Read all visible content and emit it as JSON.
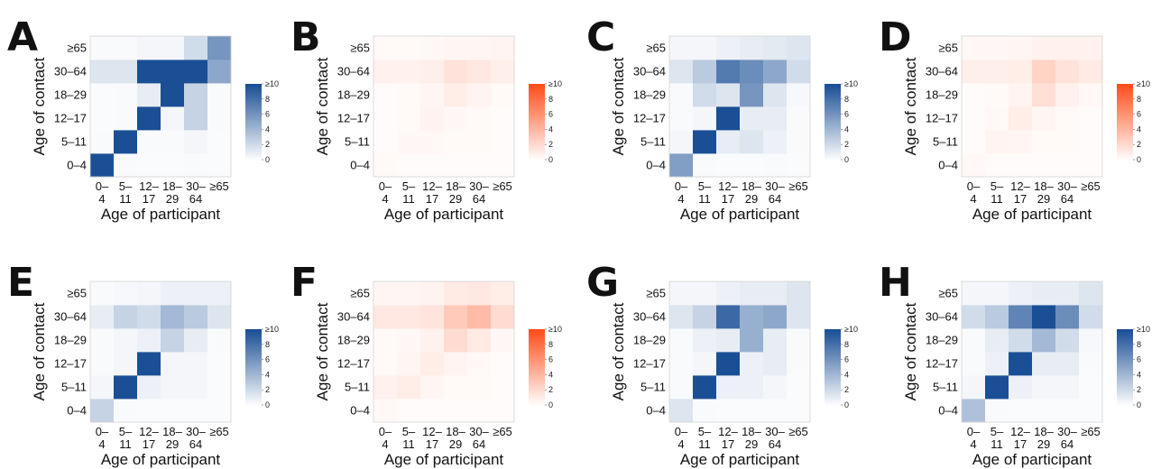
{
  "chart_data": [
    {
      "type": "heatmap",
      "panel": "A",
      "palette": "blue",
      "xlabel": "Age of participant",
      "ylabel": "Age of contact",
      "x_categories": [
        "0–4",
        "5–11",
        "12–17",
        "18–29",
        "30–64",
        "≥65"
      ],
      "y_categories": [
        "0–4",
        "5–11",
        "12–17",
        "18–29",
        "30–64",
        "≥65"
      ],
      "z_range": [
        0,
        10
      ],
      "legend_ticks": [
        "≥10",
        "8",
        "6",
        "4",
        "2",
        "0"
      ],
      "values": [
        [
          10,
          0.3,
          0.2,
          0.2,
          0.3,
          0.2
        ],
        [
          0.3,
          10,
          0.3,
          0.3,
          0.5,
          0.2
        ],
        [
          0.2,
          0.3,
          10,
          0.5,
          2.5,
          0.3
        ],
        [
          0.2,
          0.3,
          1.0,
          10,
          2.5,
          0.3
        ],
        [
          1.5,
          1.5,
          10,
          10,
          10,
          5.0
        ],
        [
          0.3,
          0.3,
          0.5,
          0.5,
          2.0,
          6.0
        ]
      ]
    },
    {
      "type": "heatmap",
      "panel": "B",
      "palette": "orange",
      "xlabel": "Age of participant",
      "ylabel": "Age of contact",
      "x_categories": [
        "0–4",
        "5–11",
        "12–17",
        "18–29",
        "30–64",
        "≥65"
      ],
      "y_categories": [
        "0–4",
        "5–11",
        "12–17",
        "18–29",
        "30–64",
        "≥65"
      ],
      "z_range": [
        0,
        10
      ],
      "legend_ticks": [
        "≥10",
        "8",
        "6",
        "4",
        "2",
        "0"
      ],
      "values": [
        [
          0.3,
          0.2,
          0.2,
          0.2,
          0.2,
          0.2
        ],
        [
          0.2,
          0.4,
          0.4,
          0.3,
          0.3,
          0.2
        ],
        [
          0.2,
          0.3,
          0.6,
          0.4,
          0.3,
          0.2
        ],
        [
          0.2,
          0.3,
          0.5,
          1.0,
          0.6,
          0.3
        ],
        [
          0.8,
          0.8,
          0.9,
          1.6,
          1.3,
          0.9
        ],
        [
          0.3,
          0.3,
          0.4,
          0.5,
          0.5,
          0.6
        ]
      ]
    },
    {
      "type": "heatmap",
      "panel": "C",
      "palette": "blue",
      "xlabel": "Age of participant",
      "ylabel": "Age of contact",
      "x_categories": [
        "0–4",
        "5–11",
        "12–17",
        "18–29",
        "30–64",
        "≥65"
      ],
      "y_categories": [
        "0–4",
        "5–11",
        "12–17",
        "18–29",
        "30–64",
        "≥65"
      ],
      "z_range": [
        0,
        10
      ],
      "legend_ticks": [
        "≥10",
        "8",
        "6",
        "4",
        "2",
        "0"
      ],
      "values": [
        [
          5.5,
          0.3,
          0.2,
          0.2,
          0.3,
          0.2
        ],
        [
          0.5,
          10,
          1.0,
          1.5,
          0.8,
          0.3
        ],
        [
          0.3,
          0.5,
          10,
          1.0,
          1.0,
          0.3
        ],
        [
          0.3,
          2.0,
          1.5,
          6.0,
          1.5,
          0.4
        ],
        [
          1.5,
          3.0,
          7.5,
          6.5,
          5.0,
          2.0
        ],
        [
          0.5,
          0.5,
          0.8,
          1.0,
          1.2,
          1.5
        ]
      ]
    },
    {
      "type": "heatmap",
      "panel": "D",
      "palette": "orange",
      "xlabel": "Age of participant",
      "ylabel": "Age of contact",
      "x_categories": [
        "0–4",
        "5–11",
        "12–17",
        "18–29",
        "30–64",
        "≥65"
      ],
      "y_categories": [
        "0–4",
        "5–11",
        "12–17",
        "18–29",
        "30–64",
        "≥65"
      ],
      "z_range": [
        0,
        10
      ],
      "legend_ticks": [
        "≥10",
        "8",
        "6",
        "4",
        "2",
        "0"
      ],
      "values": [
        [
          0.4,
          0.2,
          0.2,
          0.2,
          0.2,
          0.2
        ],
        [
          0.2,
          0.6,
          0.5,
          0.3,
          0.3,
          0.2
        ],
        [
          0.2,
          0.4,
          1.0,
          0.5,
          0.3,
          0.2
        ],
        [
          0.2,
          0.3,
          0.6,
          1.8,
          0.8,
          0.4
        ],
        [
          0.9,
          0.9,
          1.0,
          2.5,
          1.6,
          1.2
        ],
        [
          0.4,
          0.4,
          0.5,
          0.8,
          0.8,
          0.8
        ]
      ]
    },
    {
      "type": "heatmap",
      "panel": "E",
      "palette": "blue",
      "xlabel": "Age of participant",
      "ylabel": "Age of contact",
      "x_categories": [
        "0–4",
        "5–11",
        "12–17",
        "18–29",
        "30–64",
        "≥65"
      ],
      "y_categories": [
        "0–4",
        "5–11",
        "12–17",
        "18–29",
        "30–64",
        "≥65"
      ],
      "z_range": [
        0,
        10
      ],
      "legend_ticks": [
        "≥10",
        "8",
        "6",
        "4",
        "2",
        "0"
      ],
      "values": [
        [
          2.5,
          0.3,
          0.2,
          0.2,
          0.2,
          0.2
        ],
        [
          0.5,
          10,
          0.8,
          0.5,
          0.5,
          0.2
        ],
        [
          0.3,
          0.5,
          10,
          0.5,
          0.5,
          0.2
        ],
        [
          0.3,
          0.5,
          0.8,
          2.5,
          1.0,
          0.3
        ],
        [
          1.0,
          2.5,
          2.0,
          4.0,
          3.0,
          1.5
        ],
        [
          0.3,
          0.4,
          0.5,
          0.8,
          0.8,
          0.8
        ]
      ]
    },
    {
      "type": "heatmap",
      "panel": "F",
      "palette": "orange",
      "xlabel": "Age of participant",
      "ylabel": "Age of contact",
      "x_categories": [
        "0–4",
        "5–11",
        "12–17",
        "18–29",
        "30–64",
        "≥65"
      ],
      "y_categories": [
        "0–4",
        "5–11",
        "12–17",
        "18–29",
        "30–64",
        "≥65"
      ],
      "z_range": [
        0,
        10
      ],
      "legend_ticks": [
        "≥10",
        "8",
        "6",
        "4",
        "2",
        "0"
      ],
      "values": [
        [
          0.4,
          0.2,
          0.2,
          0.2,
          0.2,
          0.2
        ],
        [
          0.8,
          1.0,
          0.5,
          0.3,
          0.3,
          0.2
        ],
        [
          0.3,
          0.5,
          1.0,
          0.6,
          0.4,
          0.2
        ],
        [
          0.3,
          0.4,
          0.8,
          2.0,
          1.2,
          0.4
        ],
        [
          1.3,
          1.3,
          1.5,
          3.0,
          3.8,
          2.0
        ],
        [
          0.5,
          0.5,
          0.7,
          1.2,
          1.3,
          1.0
        ]
      ]
    },
    {
      "type": "heatmap",
      "panel": "G",
      "palette": "blue",
      "xlabel": "Age of participant",
      "ylabel": "Age of contact",
      "x_categories": [
        "0–4",
        "5–11",
        "12–17",
        "18–29",
        "30–64",
        "≥65"
      ],
      "y_categories": [
        "0–4",
        "5–11",
        "12–17",
        "18–29",
        "30–64",
        "≥65"
      ],
      "z_range": [
        0,
        10
      ],
      "legend_ticks": [
        "≥10",
        "8",
        "6",
        "4",
        "2",
        "0"
      ],
      "values": [
        [
          1.5,
          0.3,
          0.2,
          0.2,
          0.2,
          0.2
        ],
        [
          0.3,
          10,
          0.8,
          0.8,
          0.5,
          0.2
        ],
        [
          0.3,
          0.5,
          10,
          0.8,
          1.0,
          0.3
        ],
        [
          0.3,
          0.8,
          1.0,
          4.5,
          1.0,
          0.3
        ],
        [
          1.5,
          2.5,
          8.5,
          4.5,
          5.0,
          1.5
        ],
        [
          0.5,
          0.5,
          0.8,
          1.0,
          1.0,
          1.5
        ]
      ]
    },
    {
      "type": "heatmap",
      "panel": "H",
      "palette": "blue",
      "xlabel": "Age of participant",
      "ylabel": "Age of contact",
      "x_categories": [
        "0–4",
        "5–11",
        "12–17",
        "18–29",
        "30–64",
        "≥65"
      ],
      "y_categories": [
        "0–4",
        "5–11",
        "12–17",
        "18–29",
        "30–64",
        "≥65"
      ],
      "z_range": [
        0,
        10
      ],
      "legend_ticks": [
        "≥10",
        "8",
        "6",
        "4",
        "2",
        "0"
      ],
      "values": [
        [
          3.5,
          0.3,
          0.2,
          0.2,
          0.2,
          0.2
        ],
        [
          0.5,
          10,
          0.8,
          0.5,
          0.5,
          0.2
        ],
        [
          0.3,
          0.8,
          10,
          1.0,
          1.0,
          0.3
        ],
        [
          0.3,
          1.0,
          2.0,
          4.0,
          2.0,
          0.4
        ],
        [
          2.0,
          3.0,
          7.0,
          10,
          6.5,
          2.0
        ],
        [
          0.5,
          0.5,
          0.8,
          1.0,
          1.0,
          1.5
        ]
      ]
    }
  ],
  "colors": {
    "blue_high": "#1a4f95",
    "orange_high": "#ff4d1a",
    "low": "#ffffff"
  }
}
